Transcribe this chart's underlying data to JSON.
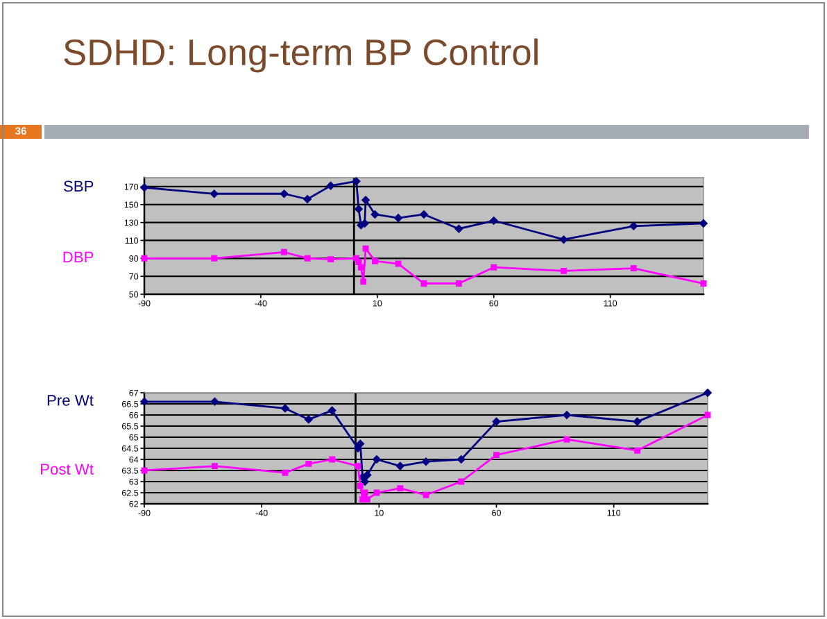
{
  "chart_data": [
    {
      "type": "line",
      "title": "SDHD: Long-term BP Control",
      "annotations": [
        "36"
      ],
      "xlim": [
        -90,
        150
      ],
      "xticks": [
        -90,
        -40,
        10,
        60,
        110
      ],
      "ylim": [
        50,
        180
      ],
      "yticks": [
        50,
        70,
        90,
        110,
        130,
        150,
        170
      ],
      "grid": "y",
      "line_style": "solid",
      "ref_lines": [
        {
          "axis": "x",
          "value": 0
        }
      ],
      "series": [
        {
          "name": "SBP",
          "color": "#000080",
          "marker": "diamond",
          "x": [
            -90,
            -60,
            -30,
            -20,
            -10,
            1,
            2,
            3,
            4.6,
            5,
            9,
            19,
            30,
            45,
            60,
            90,
            120,
            150
          ],
          "values": [
            169,
            162,
            162,
            156,
            171,
            176,
            145,
            127,
            129,
            155,
            139,
            135,
            139,
            123,
            132,
            111,
            126,
            129
          ]
        },
        {
          "name": "DBP",
          "color": "#ff00ff",
          "marker": "square",
          "x": [
            -90,
            -60,
            -30,
            -20,
            -10,
            1,
            2,
            3,
            4,
            5,
            9,
            19,
            30,
            45,
            60,
            90,
            120,
            150
          ],
          "values": [
            90,
            90,
            97,
            90,
            89,
            90,
            86,
            80,
            64,
            101,
            87,
            84,
            62,
            62,
            80,
            76,
            79,
            62
          ]
        }
      ]
    },
    {
      "type": "line",
      "xlim": [
        -90,
        150
      ],
      "xticks": [
        -90,
        -40,
        10,
        60,
        110
      ],
      "ylim": [
        62,
        67
      ],
      "yticks": [
        62,
        62.5,
        63,
        63.5,
        64,
        64.5,
        65,
        65.5,
        66,
        66.5,
        67
      ],
      "grid": "y",
      "line_style": "solid",
      "ref_lines": [
        {
          "axis": "x",
          "value": 0
        }
      ],
      "series": [
        {
          "name": "Pre Wt",
          "color": "#000080",
          "marker": "diamond",
          "x": [
            -90,
            -60,
            -30,
            -20,
            -10,
            1,
            2,
            3,
            4,
            5,
            9,
            19,
            30,
            45,
            60,
            90,
            120,
            150
          ],
          "values": [
            66.6,
            66.6,
            66.3,
            65.8,
            66.2,
            64.5,
            64.7,
            63.2,
            63.0,
            63.3,
            64.0,
            63.7,
            63.9,
            64.0,
            65.7,
            66.0,
            65.7,
            67.0
          ]
        },
        {
          "name": "Post Wt",
          "color": "#ff00ff",
          "marker": "square",
          "x": [
            -90,
            -60,
            -30,
            -20,
            -10,
            1,
            2,
            3,
            4,
            5,
            9,
            19,
            30,
            45,
            60,
            90,
            120,
            150
          ],
          "values": [
            63.5,
            63.7,
            63.4,
            63.8,
            64.0,
            63.7,
            62.8,
            62.2,
            62.5,
            62.2,
            62.5,
            62.7,
            62.4,
            63.0,
            64.2,
            64.9,
            64.4,
            66.0
          ]
        }
      ]
    }
  ]
}
